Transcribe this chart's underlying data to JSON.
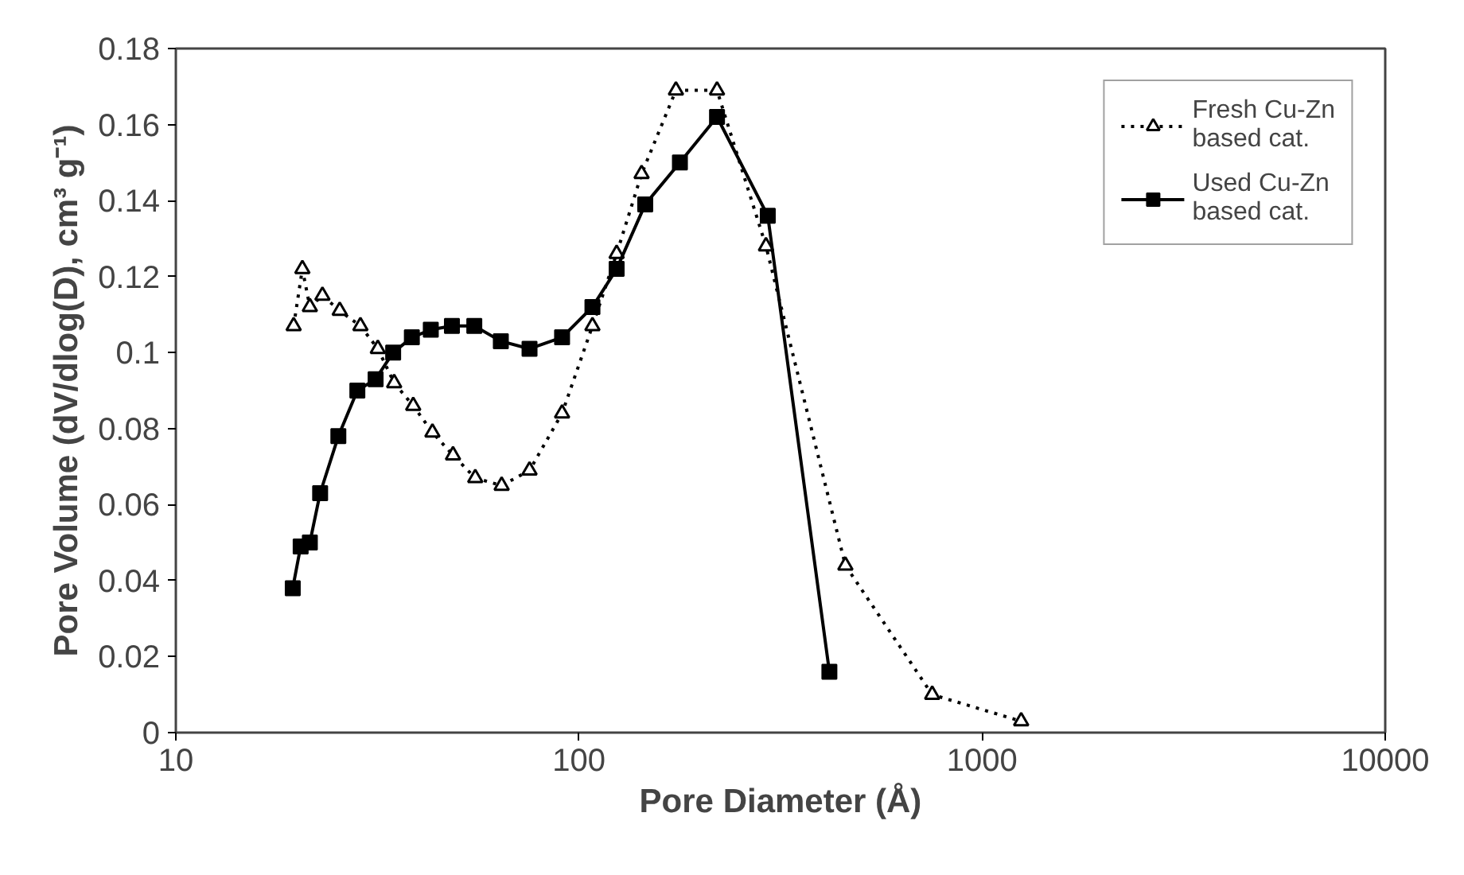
{
  "chart_data": {
    "type": "line",
    "xlabel": "Pore Diameter (Å)",
    "ylabel": "Pore Volume (dV/dlog(D), cm³ g⁻¹)",
    "log": "x",
    "xlim": [
      10,
      10000
    ],
    "xticks": [
      10,
      100,
      1000,
      10000
    ],
    "ylim": [
      0,
      0.18
    ],
    "yticks": [
      0,
      0.02,
      0.04,
      0.06,
      0.08,
      0.1,
      0.12,
      0.14,
      0.16,
      0.18
    ],
    "grid": false,
    "legend": "top right",
    "series": [
      {
        "name": "Fresh Cu-Zn\nbased cat.",
        "color": "#000000",
        "marker": "triangle",
        "line_style": "dotted",
        "x": [
          19.6,
          20.6,
          21.5,
          23.1,
          25.5,
          28.7,
          31.7,
          34.8,
          38.8,
          43.3,
          48.7,
          55.3,
          64.3,
          75.4,
          90.8,
          108,
          124,
          143,
          174,
          220,
          291,
          458,
          752,
          1250
        ],
        "values": [
          0.107,
          0.122,
          0.112,
          0.115,
          0.111,
          0.107,
          0.101,
          0.092,
          0.086,
          0.079,
          0.073,
          0.067,
          0.065,
          0.069,
          0.084,
          0.107,
          0.126,
          0.147,
          0.169,
          0.169,
          0.128,
          0.044,
          0.01,
          0.003
        ]
      },
      {
        "name": "Used Cu-Zn\nbased cat.",
        "color": "#000000",
        "marker": "square",
        "line_style": "solid",
        "x": [
          19.5,
          20.4,
          21.5,
          22.8,
          25.3,
          28.2,
          31.3,
          34.6,
          38.5,
          42.9,
          48.4,
          55.0,
          64,
          75.4,
          90.8,
          108,
          124,
          146,
          178,
          220,
          294,
          418
        ],
        "values": [
          0.038,
          0.049,
          0.05,
          0.063,
          0.078,
          0.09,
          0.093,
          0.1,
          0.104,
          0.106,
          0.107,
          0.107,
          0.103,
          0.101,
          0.104,
          0.112,
          0.122,
          0.139,
          0.15,
          0.162,
          0.136,
          0.016
        ]
      }
    ]
  }
}
